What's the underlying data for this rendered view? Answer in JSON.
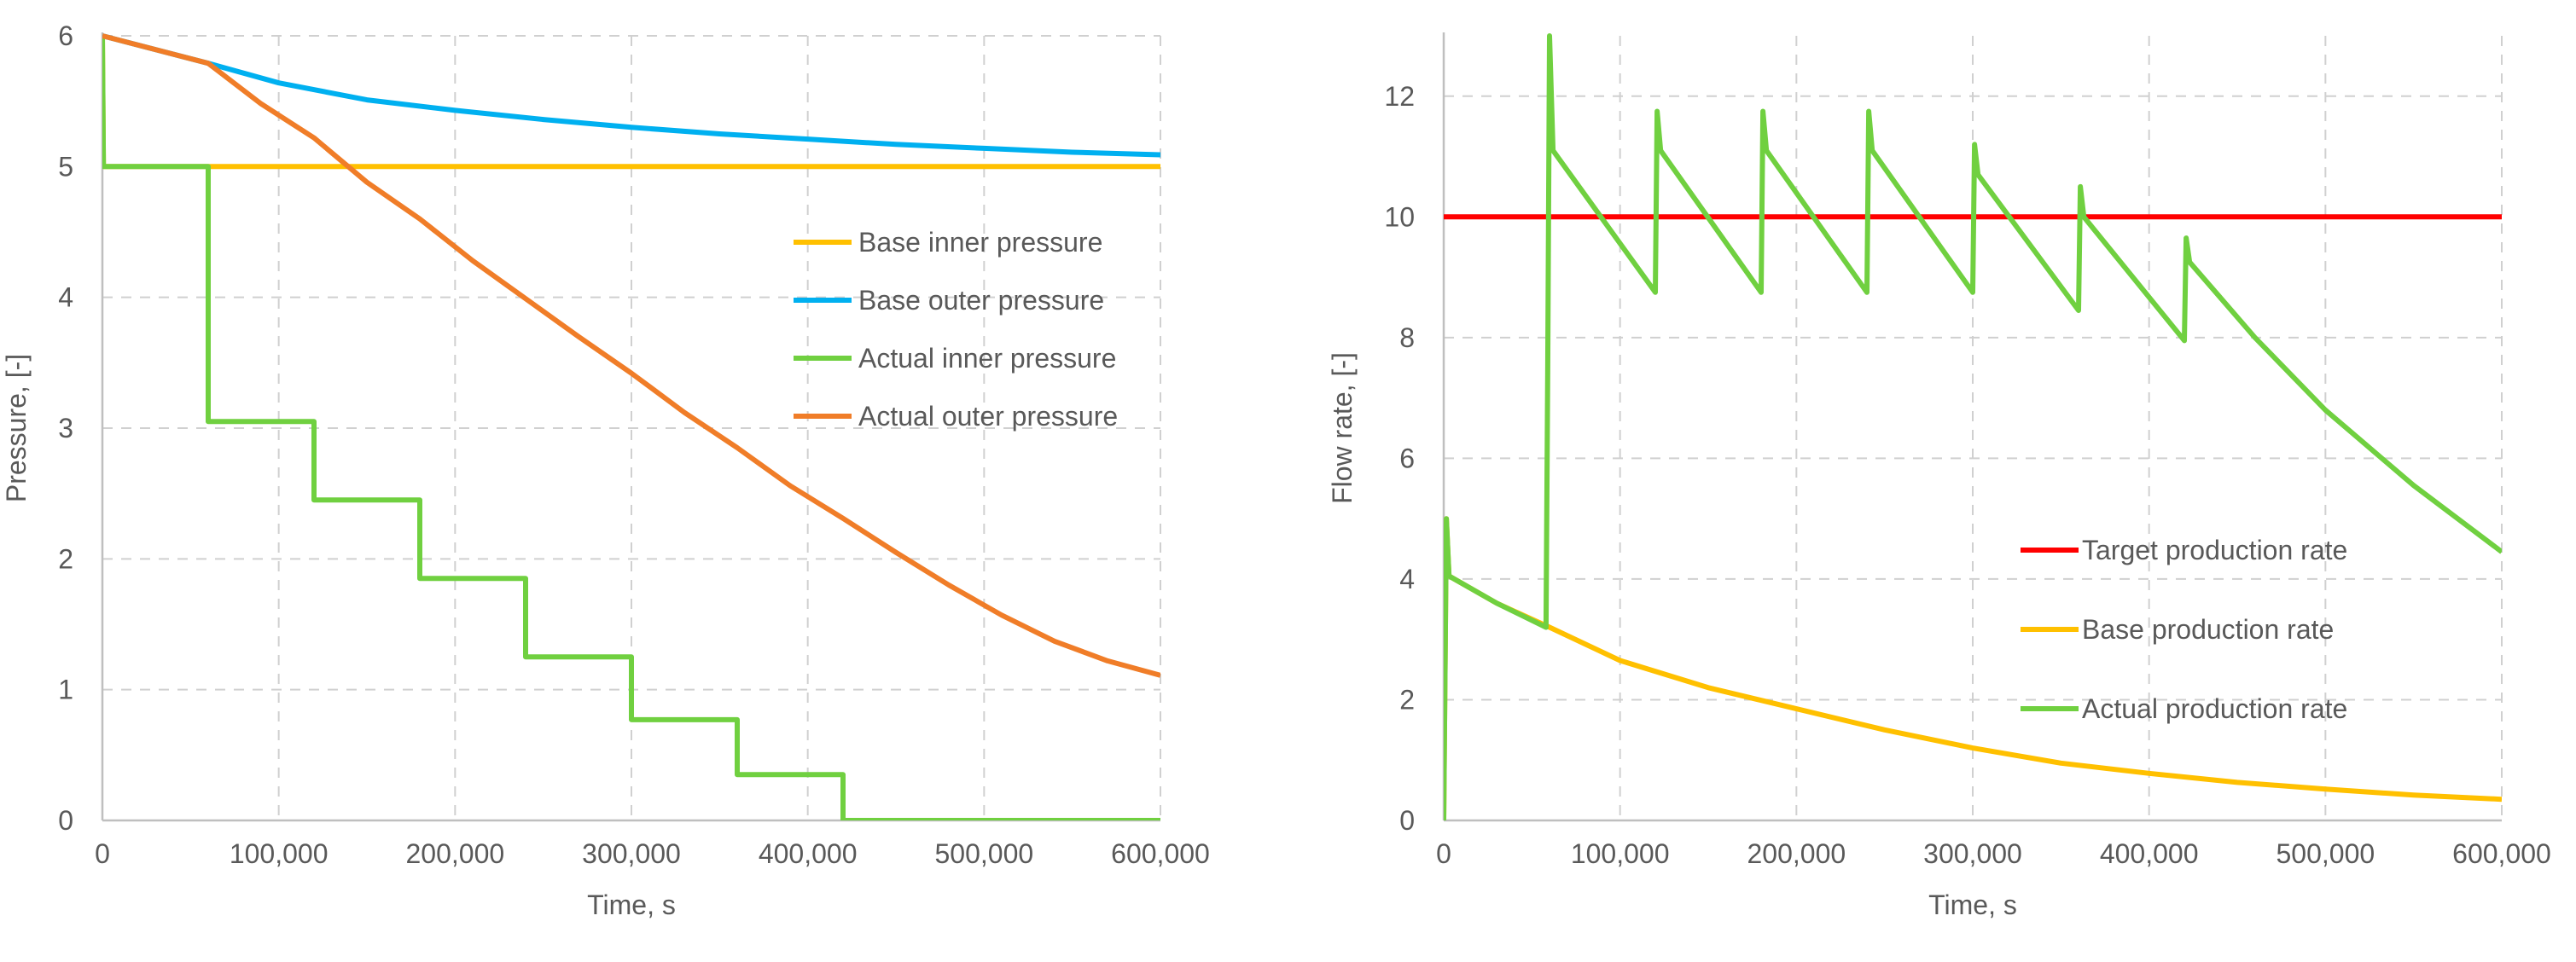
{
  "chart_data": [
    {
      "type": "line",
      "title": "",
      "xlabel": "Time, s",
      "ylabel": "Pressure, [-]",
      "xlim": [
        0,
        600000
      ],
      "ylim": [
        0,
        6
      ],
      "x_ticks": [
        0,
        100000,
        200000,
        300000,
        400000,
        500000,
        600000
      ],
      "x_tick_labels": [
        "0",
        "100,000",
        "200,000",
        "300,000",
        "400,000",
        "500,000",
        "600,000"
      ],
      "y_ticks": [
        0,
        1,
        2,
        3,
        4,
        5,
        6
      ],
      "y_tick_labels": [
        "0",
        "1",
        "2",
        "3",
        "4",
        "5",
        "6"
      ],
      "grid": true,
      "legend_position": "right",
      "series": [
        {
          "name": "Base inner pressure",
          "color": "#FFC000",
          "x": [
            0,
            600,
            600000
          ],
          "y": [
            6,
            5,
            5
          ]
        },
        {
          "name": "Base outer pressure",
          "color": "#00B0F0",
          "x": [
            0,
            60000,
            100000,
            150000,
            200000,
            250000,
            300000,
            350000,
            400000,
            450000,
            500000,
            550000,
            600000
          ],
          "y": [
            6,
            5.79,
            5.64,
            5.51,
            5.43,
            5.36,
            5.3,
            5.25,
            5.21,
            5.17,
            5.14,
            5.11,
            5.09
          ]
        },
        {
          "name": "Actual inner pressure",
          "color": "#70D040",
          "x": [
            0,
            600,
            60000,
            60000,
            120000,
            120000,
            180000,
            180000,
            240000,
            240000,
            300000,
            300000,
            360000,
            360000,
            420000,
            420000,
            600000
          ],
          "y": [
            6,
            5,
            5,
            3.05,
            3.05,
            2.45,
            2.45,
            1.85,
            1.85,
            1.25,
            1.25,
            0.77,
            0.77,
            0.35,
            0.35,
            0,
            0
          ]
        },
        {
          "name": "Actual outer pressure",
          "color": "#F07D28",
          "x": [
            0,
            60000,
            90000,
            120000,
            150000,
            180000,
            210000,
            240000,
            270000,
            300000,
            330000,
            360000,
            390000,
            420000,
            450000,
            480000,
            510000,
            540000,
            570000,
            600000
          ],
          "y": [
            6,
            5.79,
            5.48,
            5.22,
            4.88,
            4.6,
            4.28,
            3.99,
            3.7,
            3.42,
            3.12,
            2.85,
            2.56,
            2.31,
            2.05,
            1.8,
            1.57,
            1.37,
            1.22,
            1.11
          ]
        }
      ]
    },
    {
      "type": "line",
      "title": "",
      "xlabel": "Time, s",
      "ylabel": "Flow rate, [-]",
      "xlim": [
        0,
        600000
      ],
      "ylim": [
        0,
        13
      ],
      "x_ticks": [
        0,
        100000,
        200000,
        300000,
        400000,
        500000,
        600000
      ],
      "x_tick_labels": [
        "0",
        "100,000",
        "200,000",
        "300,000",
        "400,000",
        "500,000",
        "600,000"
      ],
      "y_ticks": [
        0,
        2,
        4,
        6,
        8,
        10,
        12
      ],
      "y_tick_labels": [
        "0",
        "2",
        "4",
        "6",
        "8",
        "10",
        "12"
      ],
      "grid": true,
      "legend_position": "lower-right",
      "series": [
        {
          "name": "Target production rate",
          "color": "#FF0000",
          "x": [
            0,
            600000
          ],
          "y": [
            10,
            10
          ]
        },
        {
          "name": "Base production rate",
          "color": "#FFC000",
          "x": [
            0,
            1500,
            3000,
            30000,
            60000,
            100000,
            150000,
            200000,
            250000,
            300000,
            350000,
            400000,
            450000,
            500000,
            550000,
            600000
          ],
          "y": [
            0,
            5,
            4.05,
            3.6,
            3.2,
            2.65,
            2.2,
            1.85,
            1.5,
            1.2,
            0.95,
            0.78,
            0.63,
            0.52,
            0.42,
            0.35
          ],
          "note": "series shares its initial spike with the actual production rate"
        },
        {
          "name": "Actual production rate",
          "color": "#70D040",
          "x": [
            0,
            1500,
            3000,
            30000,
            58000,
            59000,
            60000,
            62000,
            120000,
            121000,
            123000,
            180000,
            181000,
            183000,
            240000,
            241000,
            243000,
            300000,
            301000,
            303000,
            360000,
            361000,
            363000,
            420000,
            421000,
            423000,
            460000,
            500000,
            550000,
            600000
          ],
          "y": [
            0,
            5,
            4.05,
            3.6,
            3.2,
            7.5,
            13,
            11.1,
            8.75,
            11.75,
            11.1,
            8.75,
            11.75,
            11.1,
            8.75,
            11.75,
            11.1,
            8.75,
            11.2,
            10.7,
            8.45,
            10.5,
            10.0,
            7.95,
            9.65,
            9.25,
            8.0,
            6.8,
            5.55,
            4.45
          ]
        }
      ]
    }
  ]
}
